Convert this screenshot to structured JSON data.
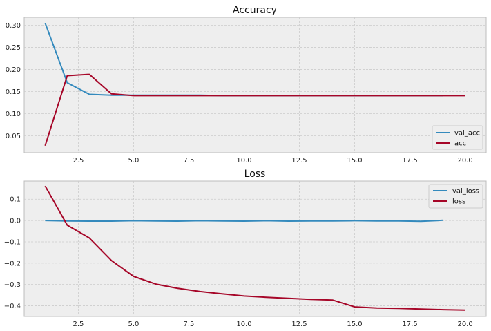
{
  "chart_data": [
    {
      "type": "line",
      "title": "Accuracy",
      "xlabel": "",
      "ylabel": "",
      "xlim": [
        0.05,
        20.95
      ],
      "ylim": [
        0.012,
        0.318
      ],
      "xticks": [
        2.5,
        5.0,
        7.5,
        10.0,
        12.5,
        15.0,
        17.5,
        20.0
      ],
      "xtick_labels": [
        "2.5",
        "5.0",
        "7.5",
        "10.0",
        "12.5",
        "15.0",
        "17.5",
        "20.0"
      ],
      "yticks": [
        0.05,
        0.1,
        0.15,
        0.2,
        0.25,
        0.3
      ],
      "ytick_labels": [
        "0.05",
        "0.10",
        "0.15",
        "0.20",
        "0.25",
        "0.30"
      ],
      "grid": true,
      "legend": "lower-right",
      "series": [
        {
          "name": "val_acc",
          "color": "#348ABD",
          "x": [
            1,
            2,
            3,
            4,
            5,
            6,
            7,
            8,
            9,
            10,
            11,
            12,
            13,
            14,
            15,
            16,
            17,
            18,
            19
          ],
          "y": [
            0.305,
            0.17,
            0.144,
            0.142,
            0.142,
            0.142,
            0.142,
            0.142,
            0.141,
            0.141,
            0.141,
            0.141,
            0.141,
            0.141,
            0.141,
            0.141,
            0.141,
            0.141,
            0.141
          ]
        },
        {
          "name": "acc",
          "color": "#A60628",
          "x": [
            1,
            2,
            3,
            4,
            5,
            6,
            7,
            8,
            9,
            10,
            11,
            12,
            13,
            14,
            15,
            16,
            17,
            18,
            19,
            20
          ],
          "y": [
            0.028,
            0.186,
            0.189,
            0.145,
            0.141,
            0.141,
            0.141,
            0.141,
            0.141,
            0.141,
            0.141,
            0.141,
            0.141,
            0.141,
            0.141,
            0.141,
            0.141,
            0.141,
            0.141,
            0.141
          ]
        }
      ]
    },
    {
      "type": "line",
      "title": "Loss",
      "xlabel": "",
      "ylabel": "",
      "xlim": [
        0.05,
        20.95
      ],
      "ylim": [
        -0.45,
        0.185
      ],
      "xticks": [
        2.5,
        5.0,
        7.5,
        10.0,
        12.5,
        15.0,
        17.5,
        20.0
      ],
      "xtick_labels": [
        "2.5",
        "5.0",
        "7.5",
        "10.0",
        "12.5",
        "15.0",
        "17.5",
        "20.0"
      ],
      "yticks": [
        -0.4,
        -0.3,
        -0.2,
        -0.1,
        0.0,
        0.1
      ],
      "ytick_labels": [
        "−0.4",
        "−0.3",
        "−0.2",
        "−0.1",
        "0.0",
        "0.1"
      ],
      "grid": true,
      "legend": "upper-right",
      "series": [
        {
          "name": "val_loss",
          "color": "#348ABD",
          "x": [
            1,
            2,
            3,
            4,
            5,
            6,
            7,
            8,
            9,
            10,
            11,
            12,
            13,
            14,
            15,
            16,
            17,
            18,
            19
          ],
          "y": [
            0.0,
            -0.002,
            -0.003,
            -0.003,
            -0.001,
            -0.002,
            -0.003,
            -0.001,
            -0.002,
            -0.003,
            -0.001,
            -0.003,
            -0.002,
            -0.002,
            -0.001,
            -0.002,
            -0.002,
            -0.004,
            0.001
          ]
        },
        {
          "name": "loss",
          "color": "#A60628",
          "x": [
            1,
            2,
            3,
            4,
            5,
            6,
            7,
            8,
            9,
            10,
            11,
            12,
            13,
            14,
            15,
            16,
            17,
            18,
            19,
            20
          ],
          "y": [
            0.162,
            -0.022,
            -0.082,
            -0.188,
            -0.262,
            -0.298,
            -0.318,
            -0.333,
            -0.344,
            -0.354,
            -0.36,
            -0.365,
            -0.37,
            -0.373,
            -0.405,
            -0.41,
            -0.412,
            -0.415,
            -0.418,
            -0.42
          ]
        }
      ]
    }
  ]
}
